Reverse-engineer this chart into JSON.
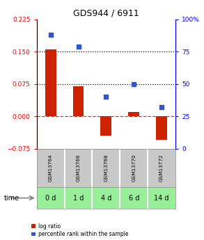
{
  "title": "GDS944 / 6911",
  "samples": [
    "GSM13764",
    "GSM13766",
    "GSM13768",
    "GSM13770",
    "GSM13772"
  ],
  "time_labels": [
    "0 d",
    "1 d",
    "4 d",
    "6 d",
    "14 d"
  ],
  "log_ratio": [
    0.155,
    0.07,
    -0.045,
    0.01,
    -0.055
  ],
  "percentile": [
    88,
    79,
    40,
    50,
    32
  ],
  "ylim_left": [
    -0.075,
    0.225
  ],
  "ylim_right": [
    0,
    100
  ],
  "yticks_left": [
    -0.075,
    0,
    0.075,
    0.15,
    0.225
  ],
  "yticks_right": [
    0,
    25,
    50,
    75,
    100
  ],
  "hline_values": [
    0.075,
    0.15
  ],
  "bar_color": "#cc2200",
  "dot_color": "#3355cc",
  "zero_line_color": "#cc3333",
  "gsm_bg_color": "#c8c8c8",
  "time_bg_color": "#99ee99",
  "time_border_color": "#888888",
  "legend_log_color": "#cc2200",
  "legend_pct_color": "#3355cc"
}
